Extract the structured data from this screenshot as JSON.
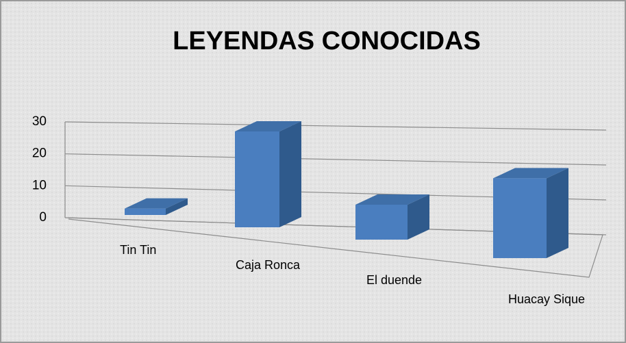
{
  "chart_data": {
    "type": "bar3d",
    "title": "LEYENDAS  CONOCIDAS",
    "categories": [
      "Tin  Tin",
      "Caja  Ronca",
      "El  duende",
      "Huacay  Sique"
    ],
    "values": [
      2,
      28,
      10,
      22
    ],
    "color": "#4a7ebf",
    "ylim": [
      0,
      30
    ],
    "yticks": [
      0,
      10,
      20,
      30
    ],
    "grid": true
  }
}
